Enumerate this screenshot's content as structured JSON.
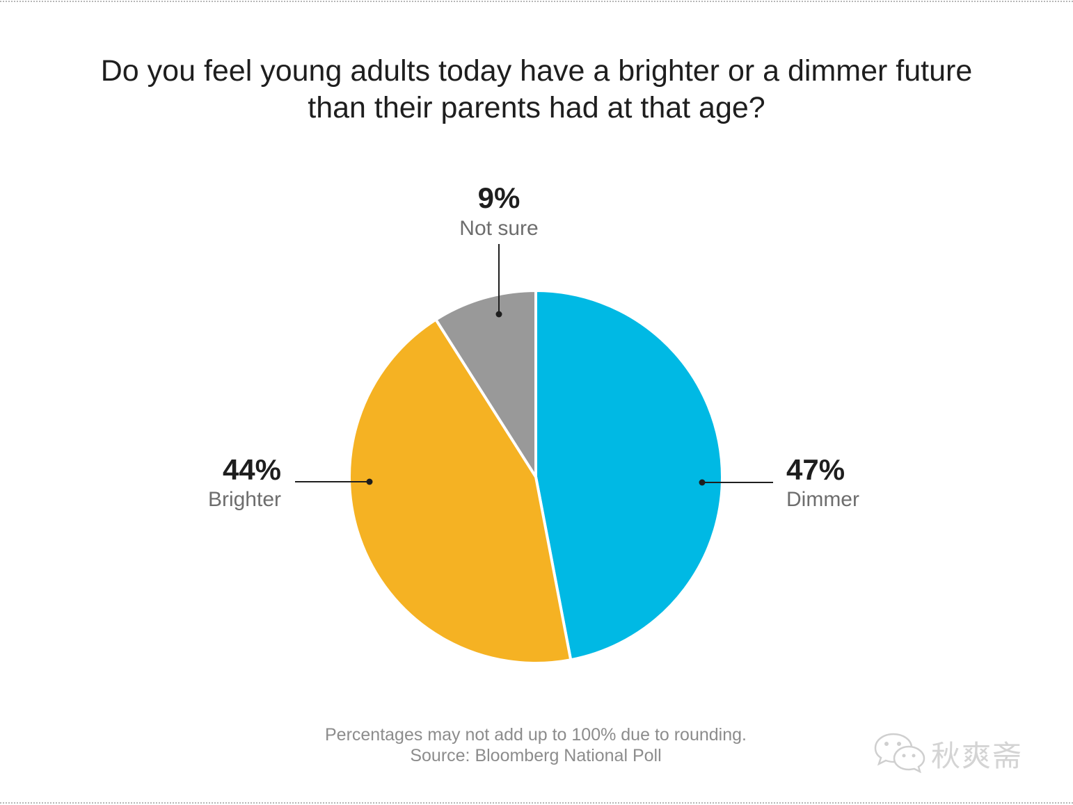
{
  "title": {
    "line1": "Do you feel young adults today have a brighter or a dimmer future",
    "line2": "than their parents had at that age?"
  },
  "chart_data": {
    "type": "pie",
    "title": "Do you feel young adults today have a brighter or a dimmer future than their parents had at that age?",
    "slices": [
      {
        "label": "Dimmer",
        "value": 47,
        "display": "47%",
        "color": "#00b9e4"
      },
      {
        "label": "Brighter",
        "value": 44,
        "display": "44%",
        "color": "#f5b223"
      },
      {
        "label": "Not sure",
        "value": 9,
        "display": "9%",
        "color": "#999999"
      }
    ]
  },
  "footer": {
    "note": "Percentages may not add up to 100% due to rounding.",
    "source": "Source: Bloomberg National Poll"
  },
  "watermark": {
    "text": "秋爽斋",
    "icon": "wechat-icon"
  }
}
